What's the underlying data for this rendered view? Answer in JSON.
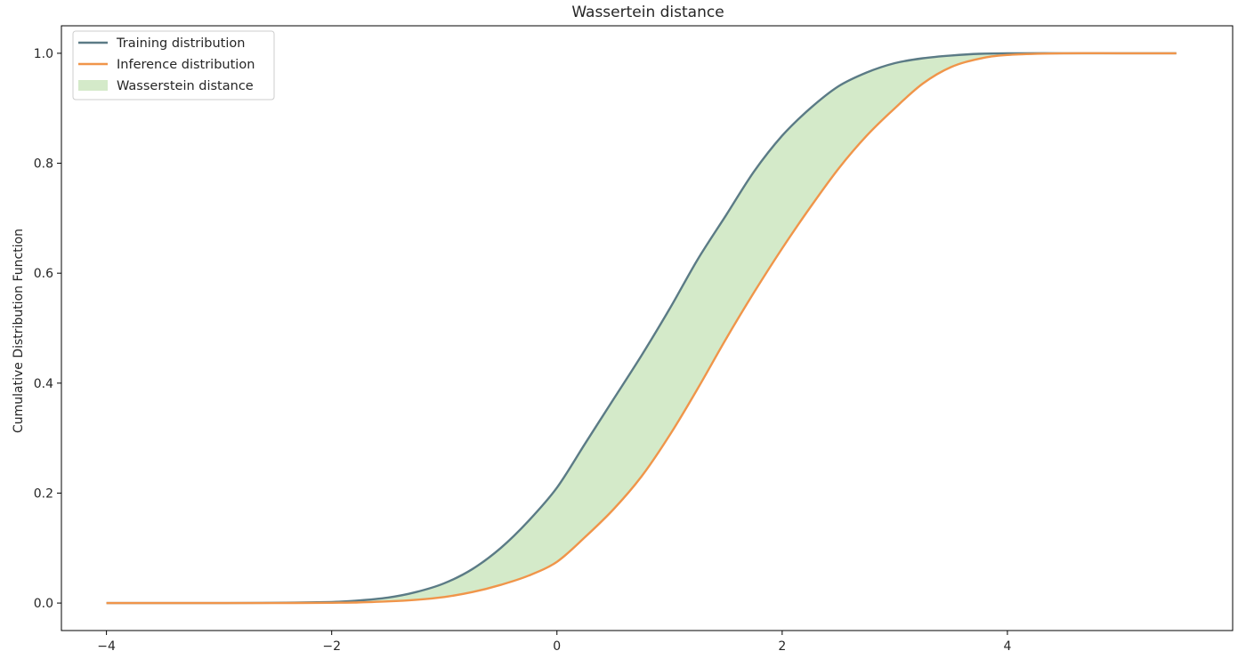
{
  "chart_data": {
    "type": "line",
    "title": "Wassertein distance",
    "xlabel": "",
    "ylabel": "Cumulative Distribution Function",
    "xlim": [
      -4.4,
      6.0
    ],
    "ylim": [
      -0.05,
      1.05
    ],
    "x_ticks": [
      -4,
      -2,
      0,
      2,
      4
    ],
    "x_tick_labels": [
      "−4",
      "−2",
      "0",
      "2",
      "4"
    ],
    "y_ticks": [
      0.0,
      0.2,
      0.4,
      0.6,
      0.8,
      1.0
    ],
    "y_tick_labels": [
      "0.0",
      "0.2",
      "0.4",
      "0.6",
      "0.8",
      "1.0"
    ],
    "grid": false,
    "legend_position": "top-left",
    "legend": [
      {
        "label": "Training distribution",
        "kind": "line",
        "color": "#5b7b86"
      },
      {
        "label": "Inference distribution",
        "kind": "line",
        "color": "#f0954a"
      },
      {
        "label": "Wasserstein distance",
        "kind": "patch",
        "color": "#d4eac9"
      }
    ],
    "fill_between": {
      "label": "Wasserstein distance",
      "color": "#d4eac9",
      "between": [
        "Training distribution",
        "Inference distribution"
      ]
    },
    "series": [
      {
        "name": "Training distribution",
        "color": "#5b7b86",
        "x": [
          -4.0,
          -3.0,
          -2.5,
          -2.0,
          -1.8,
          -1.5,
          -1.25,
          -1.0,
          -0.75,
          -0.5,
          -0.25,
          0.0,
          0.25,
          0.5,
          0.75,
          1.0,
          1.25,
          1.5,
          1.75,
          2.0,
          2.25,
          2.5,
          2.75,
          3.0,
          3.25,
          3.5,
          3.75,
          4.0,
          4.5,
          5.0,
          5.5
        ],
        "y": [
          0.0,
          0.0,
          0.0005,
          0.002,
          0.004,
          0.01,
          0.02,
          0.036,
          0.062,
          0.1,
          0.15,
          0.21,
          0.29,
          0.37,
          0.45,
          0.535,
          0.625,
          0.705,
          0.785,
          0.85,
          0.9,
          0.94,
          0.965,
          0.982,
          0.991,
          0.996,
          0.999,
          1.0,
          1.0,
          1.0,
          1.0
        ]
      },
      {
        "name": "Inference distribution",
        "color": "#f0954a",
        "x": [
          -4.0,
          -3.0,
          -2.5,
          -2.0,
          -1.8,
          -1.5,
          -1.25,
          -1.0,
          -0.75,
          -0.5,
          -0.25,
          0.0,
          0.25,
          0.5,
          0.75,
          1.0,
          1.25,
          1.5,
          1.75,
          2.0,
          2.25,
          2.5,
          2.75,
          3.0,
          3.25,
          3.5,
          3.75,
          4.0,
          4.5,
          5.0,
          5.5
        ],
        "y": [
          0.0,
          0.0,
          0.0,
          0.0005,
          0.001,
          0.003,
          0.006,
          0.011,
          0.02,
          0.033,
          0.05,
          0.075,
          0.12,
          0.17,
          0.23,
          0.305,
          0.39,
          0.48,
          0.565,
          0.645,
          0.72,
          0.79,
          0.85,
          0.9,
          0.945,
          0.975,
          0.99,
          0.997,
          1.0,
          1.0,
          1.0
        ]
      }
    ]
  }
}
